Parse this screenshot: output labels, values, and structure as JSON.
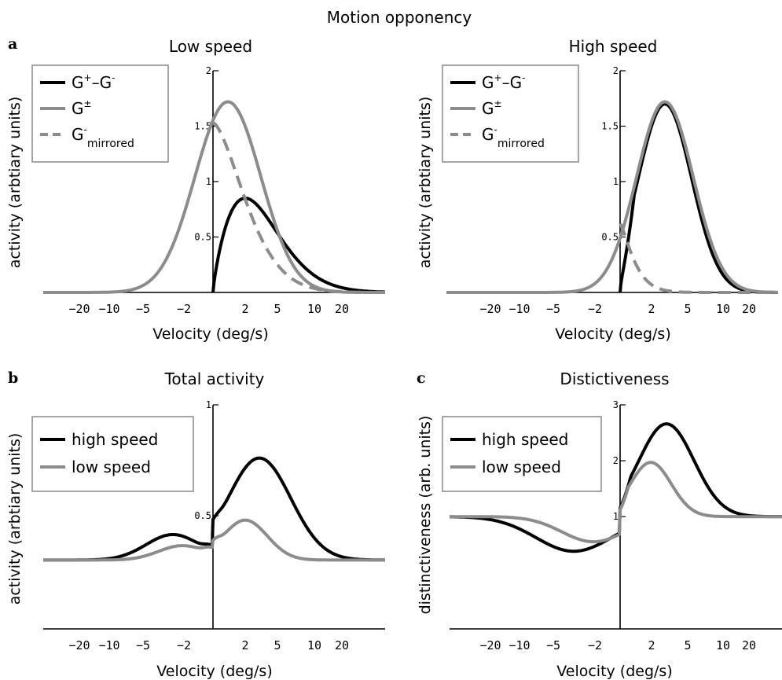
{
  "figure_title": "Motion opponency",
  "colors": {
    "black": "#000000",
    "gray": "#8c8c8c",
    "legend_border": "#909090"
  },
  "x_tick_labels": [
    "-20",
    "-10",
    "-5",
    "-2",
    "2",
    "5",
    "10",
    "20"
  ],
  "velocity_label": "Velocity (deg/s)",
  "panels": {
    "a_low": {
      "letter": "a",
      "title": "Low speed",
      "ylabel": "activity (arbtiary units)",
      "yticks": [
        "0.5",
        "1",
        "1.5",
        "2"
      ],
      "legend": [
        {
          "base": "G",
          "sup": "+",
          "mid": "–G",
          "sup2": "-",
          "sub": ""
        },
        {
          "base": "G",
          "sup": "±",
          "mid": "",
          "sup2": "",
          "sub": ""
        },
        {
          "base": "G",
          "sup": "-",
          "mid": "",
          "sup2": "",
          "sub": "mirrored"
        }
      ]
    },
    "a_high": {
      "letter": "",
      "title": "High speed",
      "ylabel": "activity (arbtiary units)",
      "yticks": [
        "0.5",
        "1",
        "1.5",
        "2"
      ],
      "legend": [
        {
          "base": "G",
          "sup": "+",
          "mid": "–G",
          "sup2": "-",
          "sub": ""
        },
        {
          "base": "G",
          "sup": "±",
          "mid": "",
          "sup2": "",
          "sub": ""
        },
        {
          "base": "G",
          "sup": "-",
          "mid": "",
          "sup2": "",
          "sub": "mirrored"
        }
      ]
    },
    "b": {
      "letter": "b",
      "title": "Total activity",
      "ylabel": "activity (arbtiary units)",
      "yticks": [
        "0.5",
        "1"
      ],
      "legend_labels": [
        "high speed",
        "low speed"
      ]
    },
    "c": {
      "letter": "c",
      "title": "Distictiveness",
      "ylabel": "distinctiveness (arb. units)",
      "yticks": [
        "1",
        "2",
        "3"
      ],
      "legend_labels": [
        "high speed",
        "low speed"
      ]
    }
  },
  "chart_data": [
    {
      "type": "line",
      "title": "Low speed",
      "xlabel": "Velocity (deg/s)",
      "ylabel": "activity (arbtiary units)",
      "ylim": [
        0,
        2
      ],
      "x": [
        -20,
        -10,
        -5,
        -2,
        -1,
        0,
        0.7,
        1,
        2,
        3,
        5,
        10,
        20
      ],
      "series": [
        {
          "name": "G+–G-",
          "color": "black",
          "dash": "solid",
          "values": [
            0,
            0,
            0,
            0,
            0,
            0,
            0.55,
            0.7,
            0.85,
            0.7,
            0.3,
            0.03,
            0
          ]
        },
        {
          "name": "G±",
          "color": "gray",
          "dash": "solid",
          "values": [
            0,
            0.01,
            0.1,
            0.7,
            1.2,
            1.55,
            1.72,
            1.65,
            1.2,
            0.7,
            0.3,
            0.03,
            0
          ]
        },
        {
          "name": "G-mirrored",
          "color": "gray",
          "dash": "dashed",
          "values": [
            null,
            null,
            null,
            null,
            null,
            1.53,
            1.2,
            1.05,
            0.45,
            0.2,
            0.07,
            0.01,
            0
          ]
        }
      ]
    },
    {
      "type": "line",
      "title": "High speed",
      "xlabel": "Velocity (deg/s)",
      "ylabel": "activity (arbtiary units)",
      "ylim": [
        0,
        2
      ],
      "x": [
        -20,
        -10,
        -5,
        -2,
        -1,
        0,
        1,
        2,
        3,
        5,
        10,
        20
      ],
      "series": [
        {
          "name": "G+–G-",
          "color": "black",
          "dash": "solid",
          "values": [
            0,
            0,
            0,
            0,
            0,
            0,
            1.0,
            1.5,
            1.7,
            1.0,
            0.1,
            0
          ]
        },
        {
          "name": "G±",
          "color": "gray",
          "dash": "solid",
          "values": [
            0,
            0,
            0.02,
            0.15,
            0.35,
            0.65,
            1.15,
            1.55,
            1.72,
            1.0,
            0.1,
            0
          ]
        },
        {
          "name": "G-mirrored",
          "color": "gray",
          "dash": "dashed",
          "values": [
            null,
            null,
            null,
            null,
            null,
            0.62,
            0.2,
            0.05,
            0.02,
            0,
            0,
            0
          ]
        }
      ]
    },
    {
      "type": "line",
      "title": "Total activity",
      "xlabel": "Velocity (deg/s)",
      "ylabel": "activity (arbtiary units)",
      "ylim": [
        0,
        1
      ],
      "x": [
        -20,
        -10,
        -5,
        -2,
        0,
        2,
        3,
        5,
        10,
        20
      ],
      "series": [
        {
          "name": "high speed",
          "color": "black",
          "values": [
            0.3,
            0.31,
            0.35,
            0.4,
            0.33,
            0.68,
            0.76,
            0.55,
            0.32,
            0.3
          ]
        },
        {
          "name": "low speed",
          "color": "gray",
          "values": [
            0.3,
            0.3,
            0.32,
            0.36,
            0.33,
            0.48,
            0.45,
            0.35,
            0.3,
            0.3
          ]
        }
      ]
    },
    {
      "type": "line",
      "title": "Distictiveness",
      "xlabel": "Velocity (deg/s)",
      "ylabel": "distinctiveness (arb. units)",
      "ylim": [
        -0.5,
        3
      ],
      "x": [
        -20,
        -10,
        -5,
        -2,
        0,
        2,
        3,
        5,
        10,
        20
      ],
      "series": [
        {
          "name": "high speed",
          "color": "black",
          "values": [
            0.98,
            0.7,
            0.4,
            0.45,
            1.0,
            2.45,
            2.65,
            2.0,
            1.1,
            1.0
          ]
        },
        {
          "name": "low speed",
          "color": "gray",
          "values": [
            1.0,
            0.95,
            0.7,
            0.55,
            1.0,
            1.95,
            1.75,
            1.3,
            1.02,
            1.0
          ]
        }
      ]
    }
  ]
}
